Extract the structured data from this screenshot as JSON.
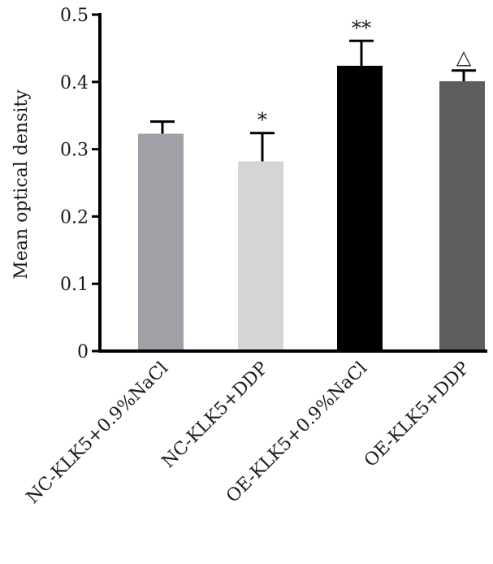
{
  "chart_data": {
    "type": "bar",
    "title": "",
    "xlabel": "",
    "ylabel": "Mean optical density",
    "ylim": [
      0,
      0.5
    ],
    "yticks": [
      "0",
      "0.1",
      "0.2",
      "0.3",
      "0.4",
      "0.5"
    ],
    "grid": false,
    "legend": "none",
    "categories": [
      "NC-KLK5+0.9%NaCl",
      "NC-KLK5+DDP",
      "OE-KLK5+0.9%NaCl",
      "OE-KLK5+DDP"
    ],
    "values": [
      0.323,
      0.282,
      0.424,
      0.401
    ],
    "errors": [
      0.018,
      0.042,
      0.037,
      0.016
    ],
    "colors": [
      "#a0a0a6",
      "#d5d5d5",
      "#000000",
      "#5e5e5e"
    ],
    "annotations": [
      "",
      "*",
      "**",
      "△"
    ]
  }
}
